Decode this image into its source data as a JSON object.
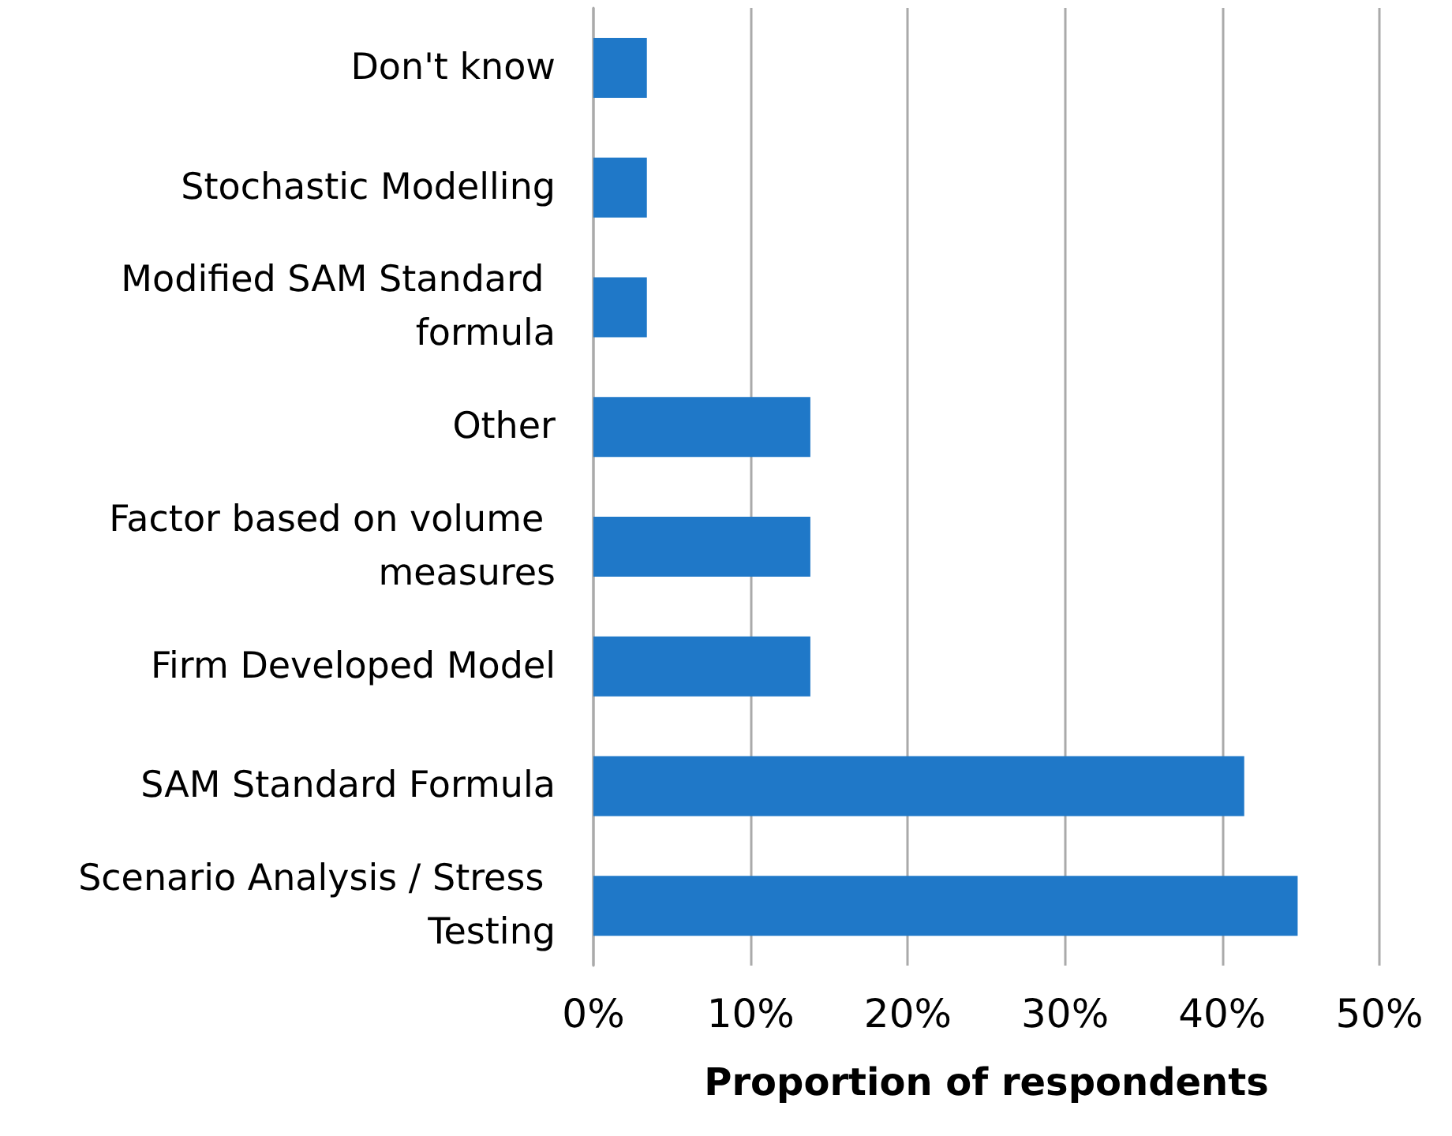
{
  "chart_data": {
    "type": "bar",
    "orientation": "horizontal",
    "xlabel": "Proportion of respondents",
    "categories": [
      "Don't know",
      "Stochastic Modelling",
      "Modified SAM Standard formula",
      "Other",
      "Factor based on volume measures",
      "Firm Developed Model",
      "SAM Standard Formula",
      "Scenario Analysis / Stress Testing"
    ],
    "values": [
      3.4,
      3.4,
      3.4,
      13.8,
      13.8,
      13.8,
      41.4,
      44.8
    ],
    "color": "#1f78c8",
    "xlim": [
      0,
      50
    ],
    "xticks": [
      {
        "value": 0,
        "label": "0%"
      },
      {
        "value": 10,
        "label": "10%"
      },
      {
        "value": 20,
        "label": "20%"
      },
      {
        "value": 30,
        "label": "30%"
      },
      {
        "value": 40,
        "label": "40%"
      },
      {
        "value": 50,
        "label": "50%"
      }
    ],
    "grid": "x"
  }
}
